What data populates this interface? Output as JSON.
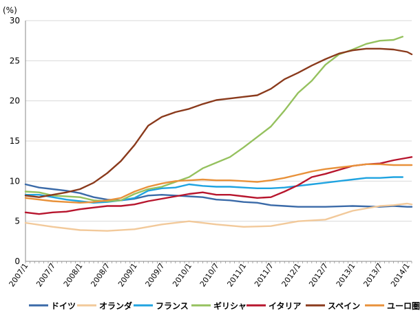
{
  "chart_data": {
    "type": "line",
    "unit_label": "(%)",
    "ylim": [
      0,
      30
    ],
    "yticks": [
      0,
      5,
      10,
      15,
      20,
      25,
      30
    ],
    "x_start": "2007/1",
    "x_end": "2014/2",
    "xtick_labels": [
      "2007/1",
      "2007/7",
      "2008/1",
      "2008/7",
      "2009/1",
      "2009/7",
      "2010/1",
      "2010/7",
      "2011/1",
      "2011/7",
      "2012/1",
      "2012/7",
      "2013/1",
      "2013/7",
      "2014/1"
    ],
    "grid": "horizontal",
    "legend_position": "bottom",
    "series": [
      {
        "name": "ドイツ",
        "color": "#3a6aa8",
        "points": [
          [
            "2007/1",
            9.6
          ],
          [
            "2007/4",
            9.2
          ],
          [
            "2007/7",
            9.0
          ],
          [
            "2007/10",
            8.8
          ],
          [
            "2008/1",
            8.5
          ],
          [
            "2008/4",
            8.0
          ],
          [
            "2008/7",
            7.7
          ],
          [
            "2008/10",
            7.6
          ],
          [
            "2009/1",
            7.8
          ],
          [
            "2009/4",
            8.2
          ],
          [
            "2009/7",
            8.3
          ],
          [
            "2009/10",
            8.2
          ],
          [
            "2010/1",
            8.1
          ],
          [
            "2010/4",
            8.0
          ],
          [
            "2010/7",
            7.7
          ],
          [
            "2010/10",
            7.6
          ],
          [
            "2011/1",
            7.4
          ],
          [
            "2011/4",
            7.3
          ],
          [
            "2011/7",
            7.0
          ],
          [
            "2011/10",
            6.9
          ],
          [
            "2012/1",
            6.8
          ],
          [
            "2012/7",
            6.8
          ],
          [
            "2013/1",
            6.9
          ],
          [
            "2013/7",
            6.8
          ],
          [
            "2013/10",
            6.9
          ],
          [
            "2014/1",
            6.8
          ],
          [
            "2014/2",
            6.8
          ]
        ]
      },
      {
        "name": "オランダ",
        "color": "#f2c99a",
        "points": [
          [
            "2007/1",
            4.8
          ],
          [
            "2007/7",
            4.3
          ],
          [
            "2008/1",
            3.9
          ],
          [
            "2008/7",
            3.8
          ],
          [
            "2009/1",
            4.0
          ],
          [
            "2009/7",
            4.6
          ],
          [
            "2010/1",
            5.0
          ],
          [
            "2010/7",
            4.6
          ],
          [
            "2011/1",
            4.3
          ],
          [
            "2011/7",
            4.4
          ],
          [
            "2012/1",
            5.0
          ],
          [
            "2012/7",
            5.2
          ],
          [
            "2013/1",
            6.3
          ],
          [
            "2013/7",
            6.9
          ],
          [
            "2013/10",
            7.0
          ],
          [
            "2014/1",
            7.2
          ],
          [
            "2014/2",
            7.1
          ]
        ]
      },
      {
        "name": "フランス",
        "color": "#1fa3e0",
        "points": [
          [
            "2007/1",
            8.3
          ],
          [
            "2007/4",
            8.3
          ],
          [
            "2007/7",
            8.0
          ],
          [
            "2007/10",
            7.7
          ],
          [
            "2008/1",
            7.5
          ],
          [
            "2008/4",
            7.3
          ],
          [
            "2008/7",
            7.4
          ],
          [
            "2008/10",
            7.6
          ],
          [
            "2009/1",
            7.9
          ],
          [
            "2009/4",
            8.8
          ],
          [
            "2009/7",
            9.1
          ],
          [
            "2009/10",
            9.2
          ],
          [
            "2010/1",
            9.6
          ],
          [
            "2010/4",
            9.4
          ],
          [
            "2010/7",
            9.3
          ],
          [
            "2010/10",
            9.3
          ],
          [
            "2011/1",
            9.2
          ],
          [
            "2011/4",
            9.1
          ],
          [
            "2011/7",
            9.1
          ],
          [
            "2011/10",
            9.2
          ],
          [
            "2012/1",
            9.4
          ],
          [
            "2012/4",
            9.6
          ],
          [
            "2012/7",
            9.8
          ],
          [
            "2012/10",
            10.0
          ],
          [
            "2013/1",
            10.2
          ],
          [
            "2013/4",
            10.4
          ],
          [
            "2013/7",
            10.4
          ],
          [
            "2013/10",
            10.5
          ],
          [
            "2013/12",
            10.5
          ]
        ]
      },
      {
        "name": "ギリシャ",
        "color": "#95c15e",
        "points": [
          [
            "2007/1",
            8.7
          ],
          [
            "2007/4",
            8.6
          ],
          [
            "2007/7",
            8.2
          ],
          [
            "2007/10",
            8.1
          ],
          [
            "2008/1",
            8.0
          ],
          [
            "2008/4",
            7.6
          ],
          [
            "2008/7",
            7.5
          ],
          [
            "2008/10",
            7.6
          ],
          [
            "2009/1",
            8.4
          ],
          [
            "2009/4",
            9.0
          ],
          [
            "2009/7",
            9.3
          ],
          [
            "2009/10",
            9.9
          ],
          [
            "2010/1",
            10.5
          ],
          [
            "2010/4",
            11.6
          ],
          [
            "2010/7",
            12.3
          ],
          [
            "2010/10",
            13.0
          ],
          [
            "2011/1",
            14.2
          ],
          [
            "2011/4",
            15.5
          ],
          [
            "2011/7",
            16.8
          ],
          [
            "2011/10",
            18.8
          ],
          [
            "2012/1",
            21.0
          ],
          [
            "2012/4",
            22.5
          ],
          [
            "2012/7",
            24.5
          ],
          [
            "2012/10",
            25.8
          ],
          [
            "2013/1",
            26.4
          ],
          [
            "2013/4",
            27.1
          ],
          [
            "2013/7",
            27.5
          ],
          [
            "2013/10",
            27.6
          ],
          [
            "2013/12",
            28.0
          ]
        ]
      },
      {
        "name": "イタリア",
        "color": "#b7152d",
        "points": [
          [
            "2007/1",
            6.1
          ],
          [
            "2007/4",
            5.9
          ],
          [
            "2007/7",
            6.1
          ],
          [
            "2007/10",
            6.2
          ],
          [
            "2008/1",
            6.5
          ],
          [
            "2008/4",
            6.7
          ],
          [
            "2008/7",
            6.9
          ],
          [
            "2008/10",
            6.9
          ],
          [
            "2009/1",
            7.1
          ],
          [
            "2009/4",
            7.5
          ],
          [
            "2009/7",
            7.8
          ],
          [
            "2009/10",
            8.1
          ],
          [
            "2010/1",
            8.4
          ],
          [
            "2010/4",
            8.6
          ],
          [
            "2010/7",
            8.3
          ],
          [
            "2010/10",
            8.3
          ],
          [
            "2011/1",
            8.1
          ],
          [
            "2011/4",
            7.9
          ],
          [
            "2011/7",
            8.0
          ],
          [
            "2011/10",
            8.7
          ],
          [
            "2012/1",
            9.5
          ],
          [
            "2012/4",
            10.5
          ],
          [
            "2012/7",
            10.9
          ],
          [
            "2012/10",
            11.4
          ],
          [
            "2013/1",
            11.9
          ],
          [
            "2013/4",
            12.1
          ],
          [
            "2013/7",
            12.2
          ],
          [
            "2013/10",
            12.6
          ],
          [
            "2014/1",
            12.9
          ],
          [
            "2014/2",
            13.0
          ]
        ]
      },
      {
        "name": "スペイン",
        "color": "#8a3a1c",
        "points": [
          [
            "2007/1",
            8.2
          ],
          [
            "2007/4",
            8.0
          ],
          [
            "2007/7",
            8.3
          ],
          [
            "2007/10",
            8.6
          ],
          [
            "2008/1",
            9.0
          ],
          [
            "2008/4",
            9.8
          ],
          [
            "2008/7",
            11.0
          ],
          [
            "2008/10",
            12.5
          ],
          [
            "2009/1",
            14.5
          ],
          [
            "2009/4",
            16.9
          ],
          [
            "2009/7",
            18.0
          ],
          [
            "2009/10",
            18.6
          ],
          [
            "2010/1",
            19.0
          ],
          [
            "2010/4",
            19.6
          ],
          [
            "2010/7",
            20.1
          ],
          [
            "2010/10",
            20.3
          ],
          [
            "2011/1",
            20.5
          ],
          [
            "2011/4",
            20.7
          ],
          [
            "2011/7",
            21.5
          ],
          [
            "2011/10",
            22.7
          ],
          [
            "2012/1",
            23.5
          ],
          [
            "2012/4",
            24.4
          ],
          [
            "2012/7",
            25.2
          ],
          [
            "2012/10",
            25.9
          ],
          [
            "2013/1",
            26.3
          ],
          [
            "2013/4",
            26.5
          ],
          [
            "2013/7",
            26.5
          ],
          [
            "2013/10",
            26.4
          ],
          [
            "2014/1",
            26.1
          ],
          [
            "2014/2",
            25.8
          ]
        ]
      },
      {
        "name": "ユーロ圏",
        "color": "#e8913a",
        "points": [
          [
            "2007/1",
            7.9
          ],
          [
            "2007/4",
            7.7
          ],
          [
            "2007/7",
            7.5
          ],
          [
            "2007/10",
            7.4
          ],
          [
            "2008/1",
            7.3
          ],
          [
            "2008/4",
            7.4
          ],
          [
            "2008/7",
            7.6
          ],
          [
            "2008/10",
            7.9
          ],
          [
            "2009/1",
            8.7
          ],
          [
            "2009/4",
            9.3
          ],
          [
            "2009/7",
            9.7
          ],
          [
            "2009/10",
            10.0
          ],
          [
            "2010/1",
            10.1
          ],
          [
            "2010/4",
            10.2
          ],
          [
            "2010/7",
            10.1
          ],
          [
            "2010/10",
            10.1
          ],
          [
            "2011/1",
            10.0
          ],
          [
            "2011/4",
            9.9
          ],
          [
            "2011/7",
            10.1
          ],
          [
            "2011/10",
            10.4
          ],
          [
            "2012/1",
            10.8
          ],
          [
            "2012/4",
            11.2
          ],
          [
            "2012/7",
            11.5
          ],
          [
            "2012/10",
            11.7
          ],
          [
            "2013/1",
            11.9
          ],
          [
            "2013/4",
            12.1
          ],
          [
            "2013/7",
            12.1
          ],
          [
            "2013/10",
            12.0
          ],
          [
            "2014/1",
            12.0
          ],
          [
            "2014/2",
            12.0
          ]
        ]
      }
    ]
  }
}
